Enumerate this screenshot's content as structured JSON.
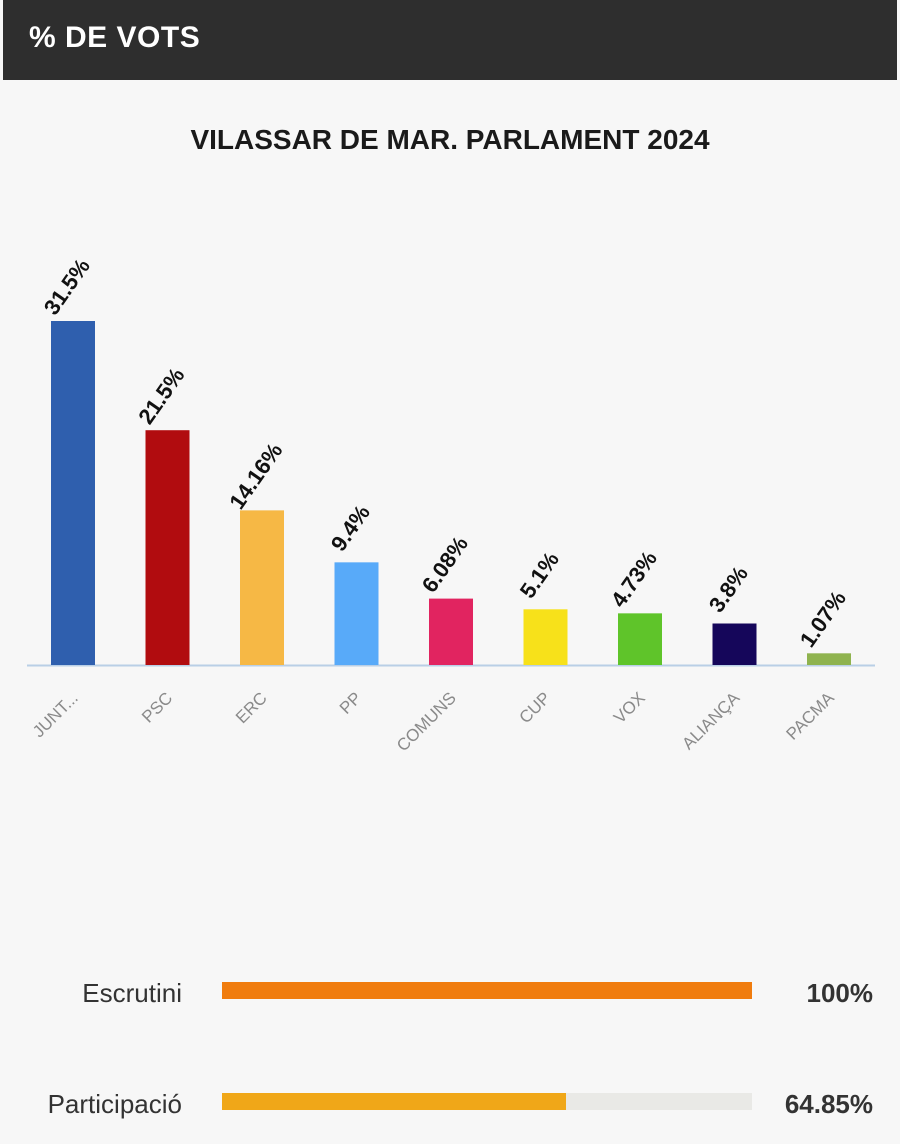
{
  "header": {
    "title": "% DE VOTS"
  },
  "chart_data": {
    "type": "bar",
    "title": "VILASSAR DE MAR. PARLAMENT 2024",
    "xlabel": "",
    "ylabel": "",
    "ylim": [
      0,
      31.5
    ],
    "categories": [
      "JUNT...",
      "PSC",
      "ERC",
      "PP",
      "COMUNS",
      "CUP",
      "VOX",
      "ALIANÇA",
      "PACMA"
    ],
    "values": [
      31.5,
      21.5,
      14.16,
      9.4,
      6.08,
      5.1,
      4.73,
      3.8,
      1.07
    ],
    "value_labels": [
      "31.5%",
      "21.5%",
      "14.16%",
      "9.4%",
      "6.08%",
      "5.1%",
      "4.73%",
      "3.8%",
      "1.07%"
    ],
    "colors": [
      "#2f5fae",
      "#b10c0f",
      "#f6b845",
      "#58aaf9",
      "#e12460",
      "#f7e11a",
      "#5fc42a",
      "#15065a",
      "#8fb34f"
    ],
    "grid": false
  },
  "stats": [
    {
      "label": "Escrutini",
      "value": "100%",
      "fraction": 1.0,
      "color": "#f07c0e"
    },
    {
      "label": "Participació",
      "value": "64.85%",
      "fraction": 0.6485,
      "color": "#f0a718"
    }
  ]
}
